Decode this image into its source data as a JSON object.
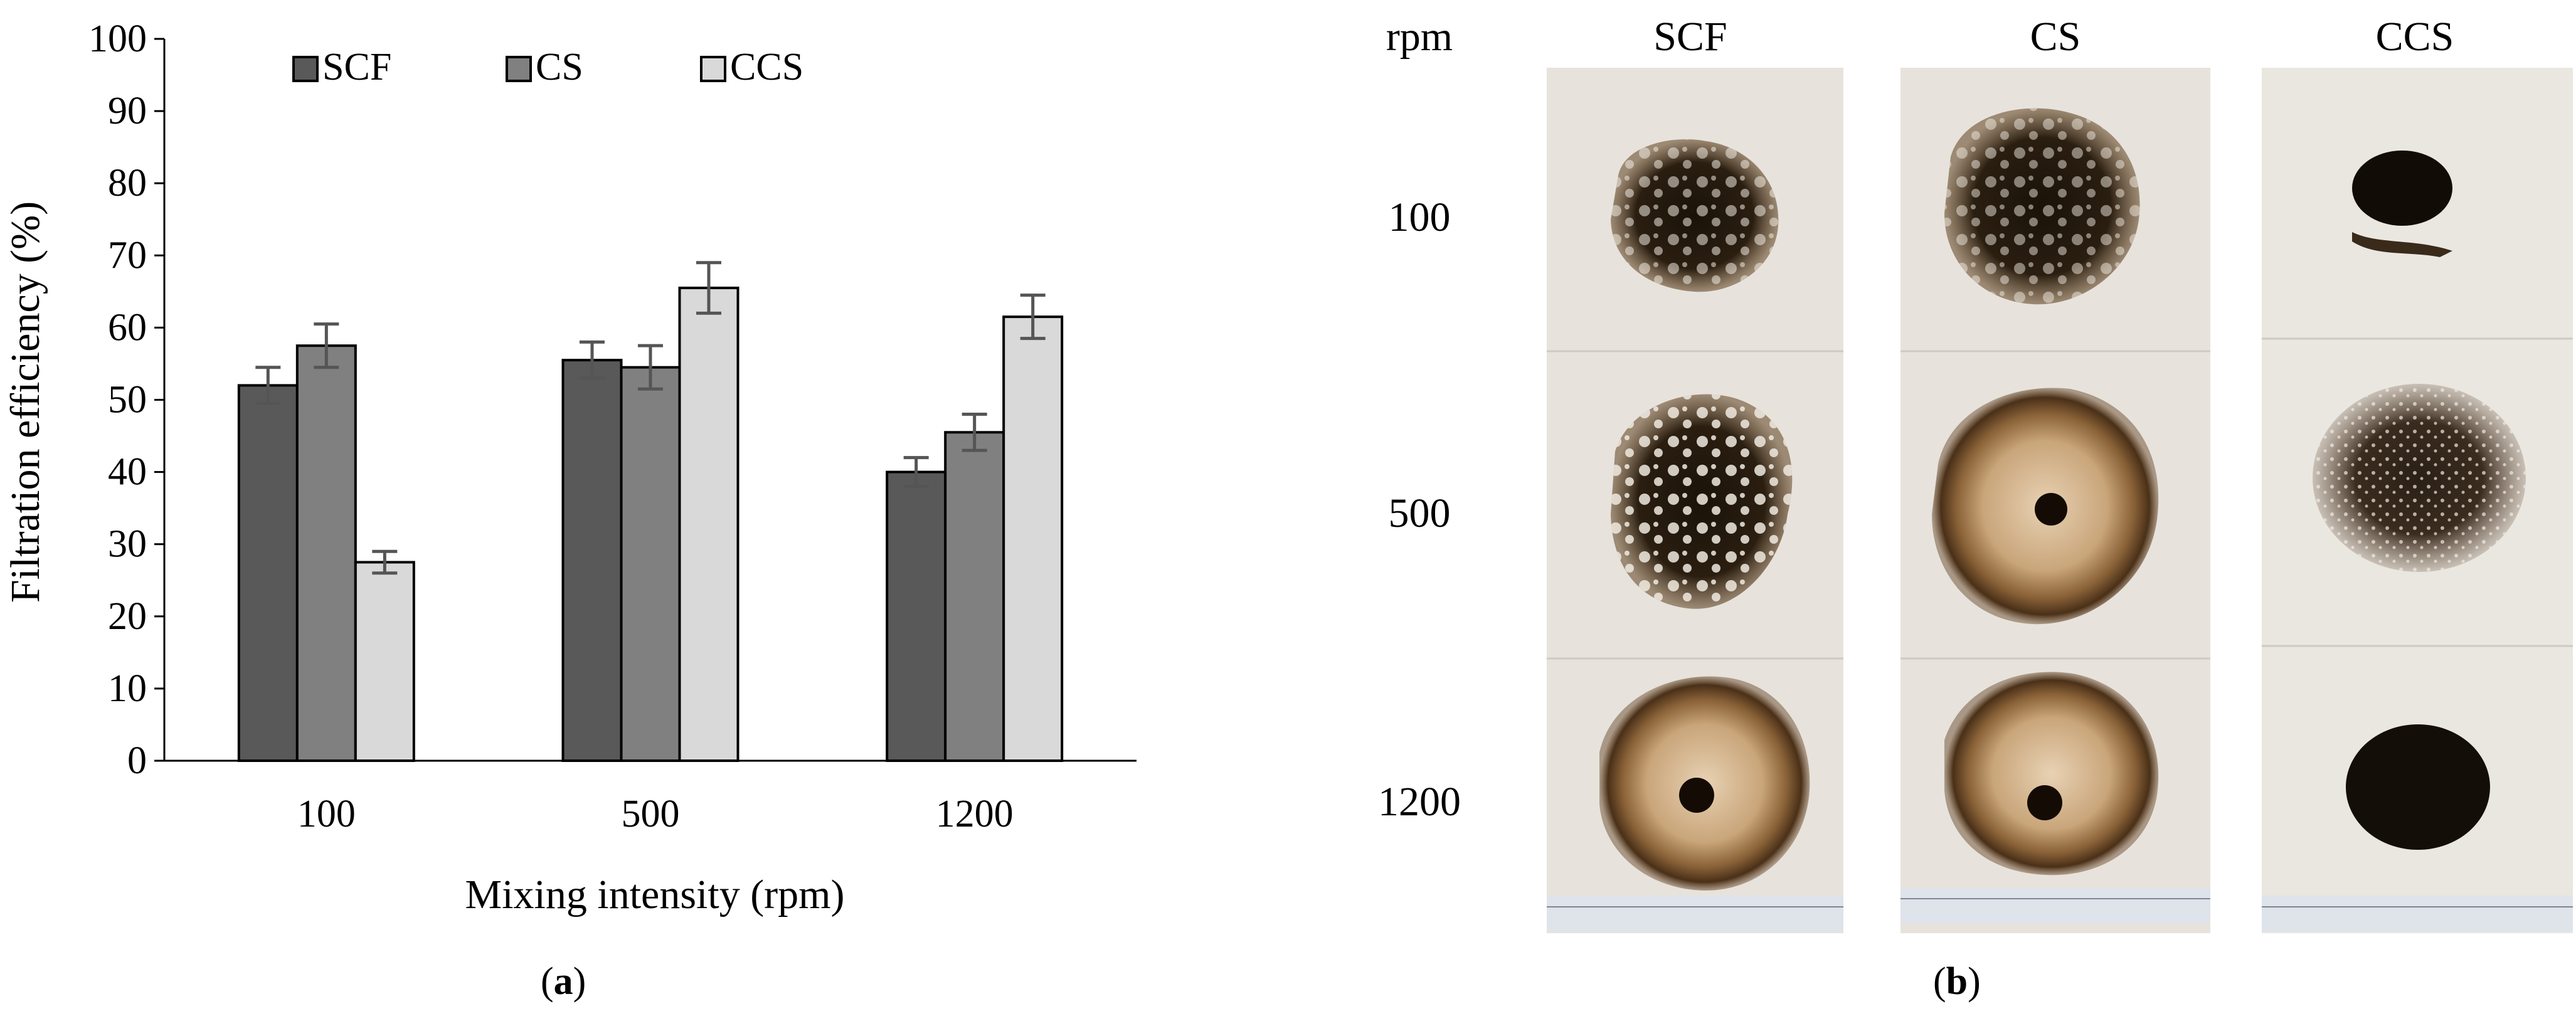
{
  "panel_a": {
    "caption_open": "(",
    "caption_letter": "a",
    "caption_close": ")"
  },
  "panel_b": {
    "caption_open": "(",
    "caption_letter": "b",
    "caption_close": ")",
    "row_header": "rpm",
    "column_labels": [
      "SCF",
      "CS",
      "CCS"
    ],
    "row_labels": [
      "100",
      "500",
      "1200"
    ]
  },
  "chart_data": {
    "type": "bar",
    "title": "",
    "xlabel": "Mixing intensity (rpm)",
    "ylabel": "Filtration efficiency (%)",
    "ylim": [
      0,
      100
    ],
    "yticks": [
      0,
      10,
      20,
      30,
      40,
      50,
      60,
      70,
      80,
      90,
      100
    ],
    "categories": [
      "100",
      "500",
      "1200"
    ],
    "legend_position": "top",
    "series": [
      {
        "name": "SCF",
        "color": "#595959",
        "values": [
          52,
          55.5,
          40
        ],
        "errors": [
          2.5,
          2.5,
          2
        ]
      },
      {
        "name": "CS",
        "color": "#808080",
        "values": [
          57.5,
          54.5,
          45.5
        ],
        "errors": [
          3,
          3,
          2.5
        ]
      },
      {
        "name": "CCS",
        "color": "#d9d9d9",
        "values": [
          27.5,
          65.5,
          61.5
        ],
        "errors": [
          1.5,
          3.5,
          3
        ]
      }
    ]
  }
}
